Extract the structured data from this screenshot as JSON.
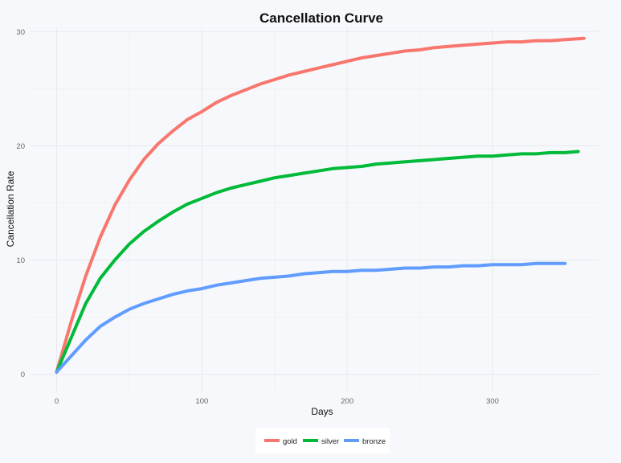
{
  "chart_data": {
    "type": "line",
    "title": "Cancellation Curve",
    "xlabel": "Days",
    "ylabel": "Cancellation Rate",
    "xlim": [
      -18,
      373
    ],
    "ylim": [
      -1.5,
      30.3
    ],
    "xticks": [
      0,
      100,
      200,
      300
    ],
    "yticks": [
      0,
      10,
      20,
      30
    ],
    "grid": true,
    "legend_position": "bottom",
    "series": [
      {
        "name": "gold",
        "color": "#f8766d",
        "points": [
          [
            0,
            0.2
          ],
          [
            10,
            4.6
          ],
          [
            20,
            8.6
          ],
          [
            30,
            12.0
          ],
          [
            40,
            14.8
          ],
          [
            50,
            17.0
          ],
          [
            60,
            18.8
          ],
          [
            70,
            20.2
          ],
          [
            80,
            21.3
          ],
          [
            90,
            22.3
          ],
          [
            100,
            23.0
          ],
          [
            110,
            23.8
          ],
          [
            120,
            24.4
          ],
          [
            130,
            24.9
          ],
          [
            140,
            25.4
          ],
          [
            150,
            25.8
          ],
          [
            160,
            26.2
          ],
          [
            170,
            26.5
          ],
          [
            180,
            26.8
          ],
          [
            190,
            27.1
          ],
          [
            200,
            27.4
          ],
          [
            210,
            27.7
          ],
          [
            220,
            27.9
          ],
          [
            230,
            28.1
          ],
          [
            240,
            28.3
          ],
          [
            250,
            28.4
          ],
          [
            260,
            28.6
          ],
          [
            270,
            28.7
          ],
          [
            280,
            28.8
          ],
          [
            290,
            28.9
          ],
          [
            300,
            29.0
          ],
          [
            310,
            29.1
          ],
          [
            320,
            29.1
          ],
          [
            330,
            29.2
          ],
          [
            340,
            29.2
          ],
          [
            350,
            29.3
          ],
          [
            363,
            29.4
          ]
        ]
      },
      {
        "name": "silver",
        "color": "#00ba38",
        "points": [
          [
            0,
            0.2
          ],
          [
            10,
            3.2
          ],
          [
            20,
            6.2
          ],
          [
            30,
            8.4
          ],
          [
            40,
            10.0
          ],
          [
            50,
            11.4
          ],
          [
            60,
            12.5
          ],
          [
            70,
            13.4
          ],
          [
            80,
            14.2
          ],
          [
            90,
            14.9
          ],
          [
            100,
            15.4
          ],
          [
            110,
            15.9
          ],
          [
            120,
            16.3
          ],
          [
            130,
            16.6
          ],
          [
            140,
            16.9
          ],
          [
            150,
            17.2
          ],
          [
            160,
            17.4
          ],
          [
            170,
            17.6
          ],
          [
            180,
            17.8
          ],
          [
            190,
            18.0
          ],
          [
            200,
            18.1
          ],
          [
            210,
            18.2
          ],
          [
            220,
            18.4
          ],
          [
            230,
            18.5
          ],
          [
            240,
            18.6
          ],
          [
            250,
            18.7
          ],
          [
            260,
            18.8
          ],
          [
            270,
            18.9
          ],
          [
            280,
            19.0
          ],
          [
            290,
            19.1
          ],
          [
            300,
            19.1
          ],
          [
            310,
            19.2
          ],
          [
            320,
            19.3
          ],
          [
            330,
            19.3
          ],
          [
            340,
            19.4
          ],
          [
            350,
            19.4
          ],
          [
            359,
            19.5
          ]
        ]
      },
      {
        "name": "bronze",
        "color": "#619cff",
        "points": [
          [
            0,
            0.2
          ],
          [
            10,
            1.6
          ],
          [
            20,
            3.0
          ],
          [
            30,
            4.2
          ],
          [
            40,
            5.0
          ],
          [
            50,
            5.7
          ],
          [
            60,
            6.2
          ],
          [
            70,
            6.6
          ],
          [
            80,
            7.0
          ],
          [
            90,
            7.3
          ],
          [
            100,
            7.5
          ],
          [
            110,
            7.8
          ],
          [
            120,
            8.0
          ],
          [
            130,
            8.2
          ],
          [
            140,
            8.4
          ],
          [
            150,
            8.5
          ],
          [
            160,
            8.6
          ],
          [
            170,
            8.8
          ],
          [
            180,
            8.9
          ],
          [
            190,
            9.0
          ],
          [
            200,
            9.0
          ],
          [
            210,
            9.1
          ],
          [
            220,
            9.1
          ],
          [
            230,
            9.2
          ],
          [
            240,
            9.3
          ],
          [
            250,
            9.3
          ],
          [
            260,
            9.4
          ],
          [
            270,
            9.4
          ],
          [
            280,
            9.5
          ],
          [
            290,
            9.5
          ],
          [
            300,
            9.6
          ],
          [
            310,
            9.6
          ],
          [
            320,
            9.6
          ],
          [
            330,
            9.7
          ],
          [
            340,
            9.7
          ],
          [
            350,
            9.7
          ]
        ]
      }
    ]
  }
}
